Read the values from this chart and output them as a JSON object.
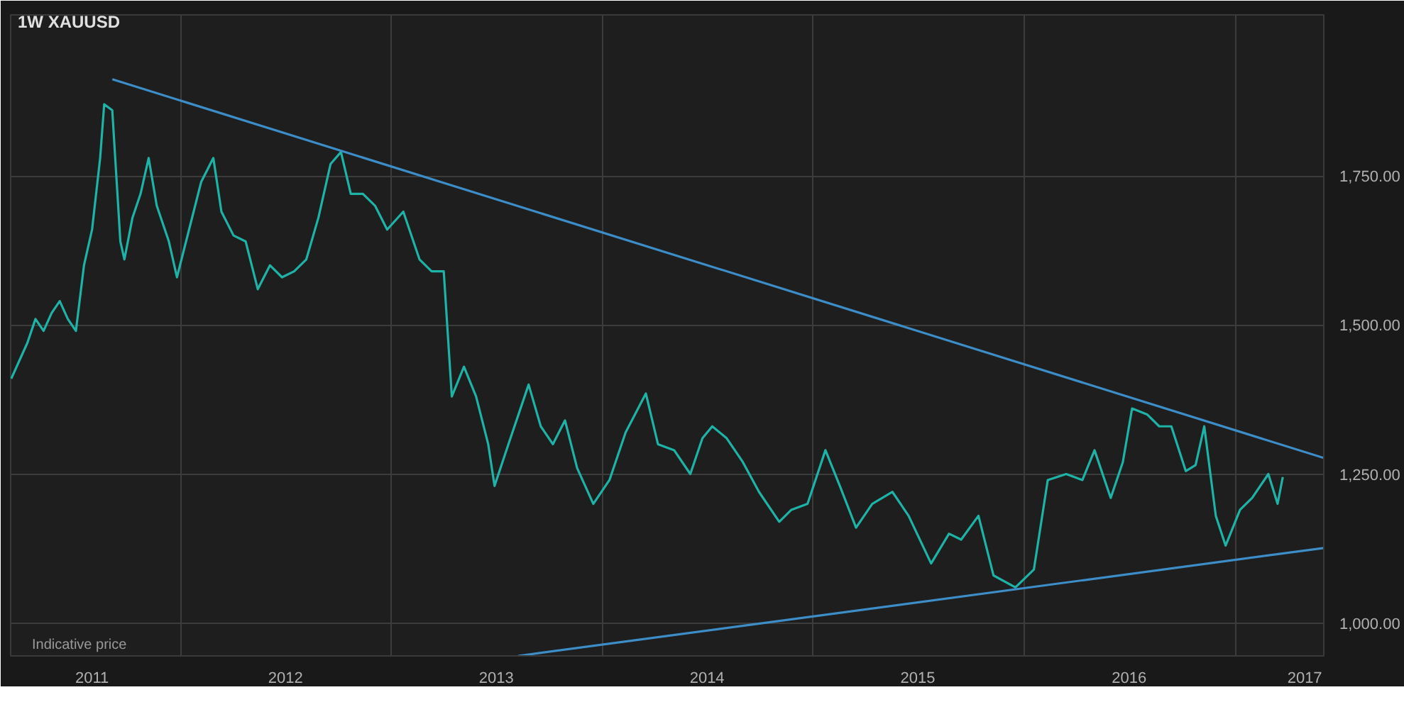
{
  "chart_data": {
    "type": "line",
    "title": "1W    XAUUSD",
    "annotations": [
      "Indicative price"
    ],
    "xlim": [
      "2011-03-13",
      "2017-06-03"
    ],
    "ylim": [
      945,
      2020
    ],
    "xticks": [
      {
        "value": "2011-08-01",
        "label": "2011"
      },
      {
        "value": "2012-01-01",
        "label": null
      },
      {
        "value": "2012-07-01",
        "label": "2012"
      },
      {
        "value": "2013-01-01",
        "label": null
      },
      {
        "value": "2013-07-01",
        "label": "2013"
      },
      {
        "value": "2014-01-01",
        "label": null
      },
      {
        "value": "2014-07-01",
        "label": "2014"
      },
      {
        "value": "2015-01-01",
        "label": null
      },
      {
        "value": "2015-07-01",
        "label": "2015"
      },
      {
        "value": "2016-01-01",
        "label": null
      },
      {
        "value": "2016-07-01",
        "label": "2016"
      },
      {
        "value": "2017-01-01",
        "label": null
      },
      {
        "value": "2017-05-01",
        "label": "2017"
      }
    ],
    "yticks": [
      {
        "value": 1000,
        "label": "1,000.00"
      },
      {
        "value": 1250,
        "label": "1,250.00"
      },
      {
        "value": 1500,
        "label": "1,500.00"
      },
      {
        "value": 1750,
        "label": "1,750.00"
      }
    ],
    "grid": true,
    "series": [
      {
        "color": "#1fb2a6",
        "x": [
          "2011-03-14",
          "2011-03-28",
          "2011-04-11",
          "2011-04-25",
          "2011-05-09",
          "2011-05-23",
          "2011-06-06",
          "2011-06-20",
          "2011-07-04",
          "2011-07-18",
          "2011-08-01",
          "2011-08-15",
          "2011-08-22",
          "2011-09-05",
          "2011-09-19",
          "2011-09-26",
          "2011-10-10",
          "2011-10-24",
          "2011-11-07",
          "2011-11-21",
          "2011-12-12",
          "2011-12-26",
          "2012-01-16",
          "2012-02-06",
          "2012-02-27",
          "2012-03-12",
          "2012-04-02",
          "2012-04-23",
          "2012-05-14",
          "2012-06-04",
          "2012-06-25",
          "2012-07-16",
          "2012-08-06",
          "2012-08-27",
          "2012-09-17",
          "2012-10-05",
          "2012-10-22",
          "2012-11-12",
          "2012-12-03",
          "2012-12-24",
          "2013-01-21",
          "2013-02-18",
          "2013-03-11",
          "2013-04-01",
          "2013-04-15",
          "2013-05-06",
          "2013-05-27",
          "2013-06-17",
          "2013-06-28",
          "2013-07-22",
          "2013-08-26",
          "2013-09-16",
          "2013-10-07",
          "2013-10-28",
          "2013-11-18",
          "2013-12-16",
          "2014-01-13",
          "2014-02-10",
          "2014-03-17",
          "2014-04-07",
          "2014-05-05",
          "2014-06-02",
          "2014-06-23",
          "2014-07-10",
          "2014-08-04",
          "2014-09-01",
          "2014-09-29",
          "2014-11-03",
          "2014-11-24",
          "2014-12-22",
          "2015-01-22",
          "2015-02-16",
          "2015-03-16",
          "2015-04-13",
          "2015-05-18",
          "2015-06-15",
          "2015-07-24",
          "2015-08-24",
          "2015-09-14",
          "2015-10-14",
          "2015-11-09",
          "2015-12-17",
          "2016-01-18",
          "2016-02-11",
          "2016-03-14",
          "2016-04-11",
          "2016-05-02",
          "2016-05-30",
          "2016-06-20",
          "2016-07-06",
          "2016-08-01",
          "2016-08-22",
          "2016-09-12",
          "2016-10-07",
          "2016-10-24",
          "2016-11-08",
          "2016-11-28",
          "2016-12-15",
          "2017-01-09",
          "2017-01-30",
          "2017-02-27",
          "2017-03-15",
          "2017-03-24"
        ],
        "values": [
          1410,
          1440,
          1470,
          1510,
          1490,
          1520,
          1540,
          1510,
          1490,
          1600,
          1660,
          1780,
          1870,
          1860,
          1640,
          1610,
          1680,
          1720,
          1780,
          1700,
          1640,
          1580,
          1660,
          1740,
          1780,
          1690,
          1650,
          1640,
          1560,
          1600,
          1580,
          1590,
          1610,
          1680,
          1770,
          1790,
          1720,
          1720,
          1700,
          1660,
          1690,
          1610,
          1590,
          1590,
          1380,
          1430,
          1380,
          1300,
          1230,
          1300,
          1400,
          1330,
          1300,
          1340,
          1260,
          1200,
          1240,
          1320,
          1385,
          1300,
          1290,
          1250,
          1310,
          1330,
          1310,
          1270,
          1220,
          1170,
          1190,
          1200,
          1290,
          1230,
          1160,
          1200,
          1220,
          1180,
          1100,
          1150,
          1140,
          1180,
          1080,
          1060,
          1090,
          1240,
          1250,
          1240,
          1290,
          1210,
          1270,
          1360,
          1350,
          1330,
          1330,
          1255,
          1265,
          1330,
          1180,
          1130,
          1190,
          1210,
          1250,
          1200,
          1245
        ]
      },
      {
        "type": "line",
        "color": "#3d8ec8",
        "x": [
          "2011-09-05",
          "2017-06-03"
        ],
        "values": [
          1912,
          1277
        ]
      },
      {
        "type": "line",
        "color": "#3d8ec8",
        "x": [
          "2013-08-08",
          "2017-06-03"
        ],
        "values": [
          945,
          1126
        ]
      }
    ]
  }
}
